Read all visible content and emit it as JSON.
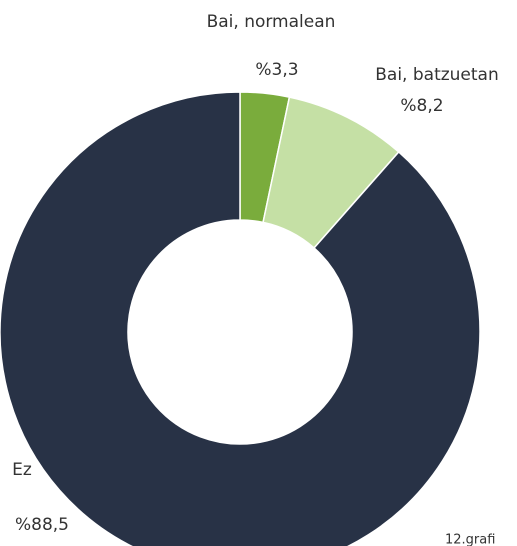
{
  "chart_data": {
    "type": "donut",
    "categories": [
      "Bai, normalean",
      "Bai, batzuetan",
      "Ez"
    ],
    "values": [
      3.3,
      8.2,
      88.5
    ],
    "value_labels": [
      "%3,3",
      "%8,2",
      "%88,5"
    ],
    "colors": [
      "#7aac3c",
      "#c5e0a5",
      "#283246"
    ],
    "note": "12.grafi"
  }
}
